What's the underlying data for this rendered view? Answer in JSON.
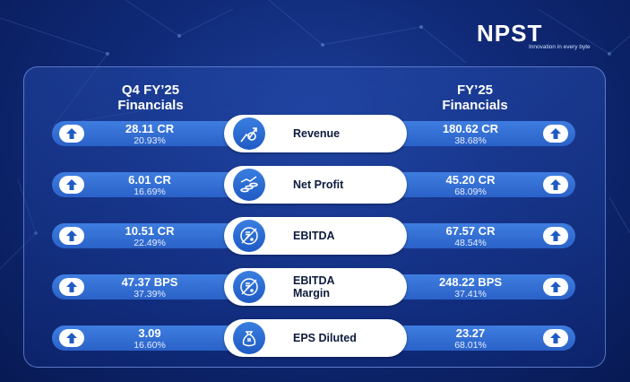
{
  "brand": {
    "name": "NPST",
    "tagline": "Innovation in every byte"
  },
  "headers": {
    "left": "Q4 FY’25 Financials",
    "right": "FY’25 Financials"
  },
  "rows": [
    {
      "metric": "Revenue",
      "icon": "revenue-growth-icon",
      "q4_value": "28.11 CR",
      "q4_growth": "20.93%",
      "fy_value": "180.62 CR",
      "fy_growth": "38.68%"
    },
    {
      "metric": "Net Profit",
      "icon": "coins-growth-icon",
      "q4_value": "6.01 CR",
      "q4_growth": "16.69%",
      "fy_value": "45.20 CR",
      "fy_growth": "68.09%"
    },
    {
      "metric": "EBITDA",
      "icon": "rupee-percent-icon",
      "q4_value": "10.51 CR",
      "q4_growth": "22.49%",
      "fy_value": "67.57 CR",
      "fy_growth": "48.54%"
    },
    {
      "metric": "EBITDA Margin",
      "icon": "rupee-percent-icon",
      "q4_value": "47.37 BPS",
      "q4_growth": "37.39%",
      "fy_value": "248.22 BPS",
      "fy_growth": "37.41%"
    },
    {
      "metric": "EPS Diluted",
      "icon": "money-bag-icon",
      "q4_value": "3.09",
      "q4_growth": "16.60%",
      "fy_value": "23.27",
      "fy_growth": "68.01%"
    }
  ],
  "colors": {
    "background": "#102a78",
    "bar": "#3f7de0",
    "pill": "#ffffff",
    "icon_circle": "#2a6cd4",
    "arrow": "#1f5bc4"
  }
}
